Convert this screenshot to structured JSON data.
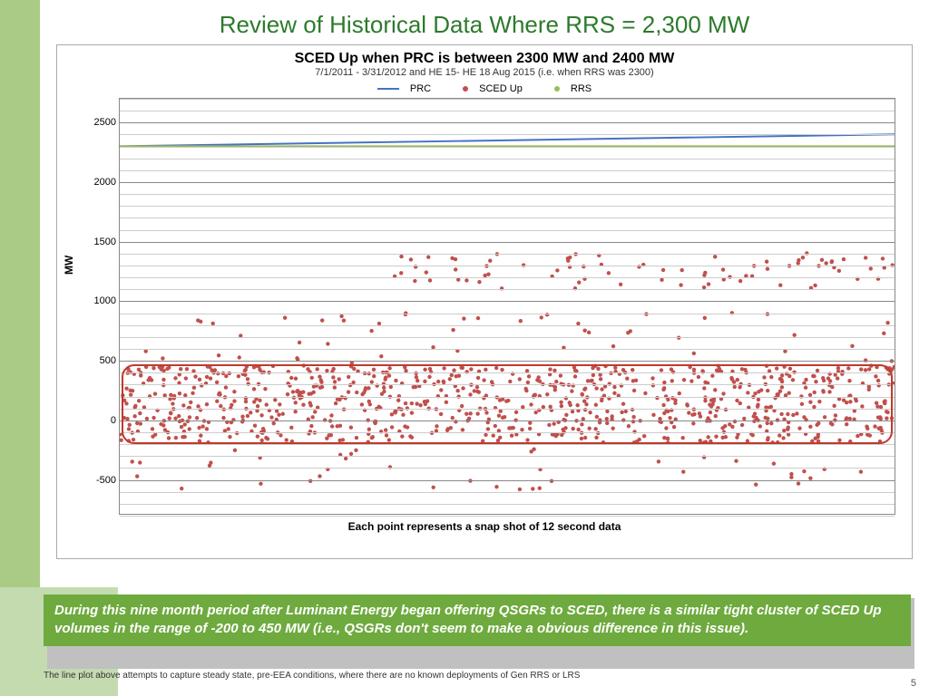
{
  "slide": {
    "title": "Review of Historical Data Where RRS = 2,300 MW",
    "page_number": "5"
  },
  "chart": {
    "type": "scatter+line",
    "title": "SCED Up when PRC is between 2300 MW and 2400 MW",
    "subtitle": "7/1/2011 - 3/31/2012 and HE 15- HE 18 Aug 2015 (i.e. when RRS was 2300)",
    "x_caption": "Each point represents a snap shot of 12 second data",
    "y_label": "MW",
    "ylim": [
      -800,
      2700
    ],
    "y_ticks": [
      -500,
      0,
      500,
      1000,
      1500,
      2000,
      2500
    ],
    "minor_step": 100,
    "x_range": [
      0,
      1000
    ],
    "background_color": "#ffffff",
    "grid_color": "#cccccc",
    "major_grid_color": "#888888",
    "border_color": "#888888",
    "series": [
      {
        "name": "PRC",
        "type": "line",
        "color": "#4472c4",
        "width": 2,
        "y_start": 2300,
        "y_end": 2400
      },
      {
        "name": "SCED Up",
        "type": "scatter",
        "color": "#c0504d",
        "marker_size": 2.2
      },
      {
        "name": "RRS",
        "type": "line",
        "color": "#9bbb59",
        "width": 2,
        "y_const": 2300
      }
    ],
    "scatter_main_band": {
      "y_min": -200,
      "y_max": 450,
      "count": 900
    },
    "scatter_loose": [
      {
        "y_min": -600,
        "y_max": -250,
        "count": 40
      },
      {
        "y_min": 470,
        "y_max": 900,
        "count": 50
      },
      {
        "y_min": 1100,
        "y_max": 1400,
        "x_min": 350,
        "x_max": 1000,
        "count": 80
      }
    ],
    "callout": {
      "y_min": -200,
      "y_max": 470,
      "color": "#c0392b",
      "radius": 14
    }
  },
  "legend_labels": {
    "prc": "PRC",
    "sced": "SCED Up",
    "rrs": "RRS"
  },
  "note": {
    "text": "During this nine month period after Luminant Energy began offering QSGRs to SCED, there is a similar tight cluster of SCED Up volumes in the range of -200 to 450 MW (i.e., QSGRs don't seem to make a obvious difference in this issue).",
    "bg": "#6eaa3e",
    "color": "#ffffff"
  },
  "footnote": "The line plot above attempts to capture steady state, pre-EEA conditions, where there are no known deployments of Gen RRS or LRS",
  "colors": {
    "left_bar": "#a9cb86",
    "title": "#2d7a2d"
  }
}
